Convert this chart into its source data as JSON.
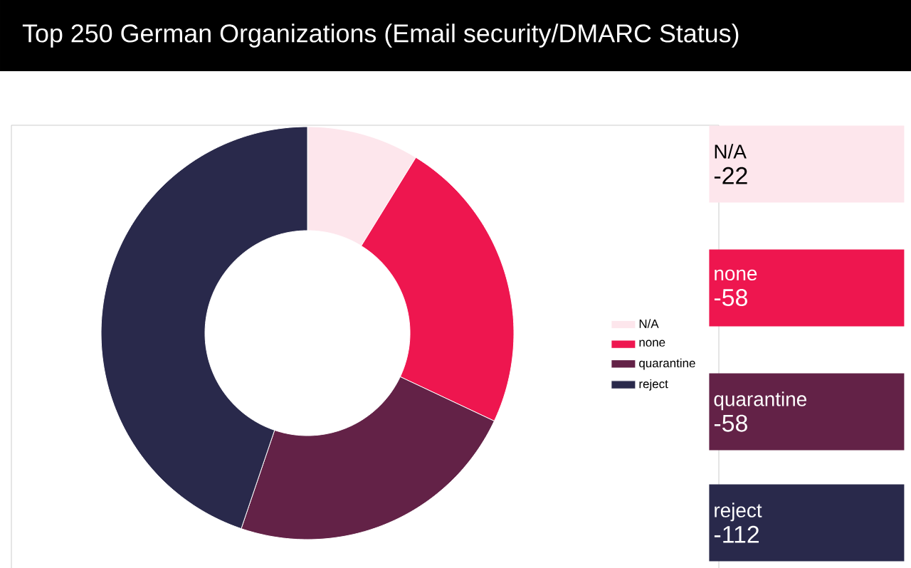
{
  "chart_data": {
    "type": "donut",
    "title": "Top 250 German Organizations (Email security/DMARC Status)",
    "categories": [
      "N/A",
      "none",
      "quarantine",
      "reject"
    ],
    "values": [
      8.8,
      23.2,
      23.2,
      44.8
    ],
    "colors": [
      "#fde6ec",
      "#ee164f",
      "#632247",
      "#29294b"
    ],
    "annotations": [
      "-22",
      "-58",
      "-58",
      "-112"
    ],
    "legend": "right"
  }
}
